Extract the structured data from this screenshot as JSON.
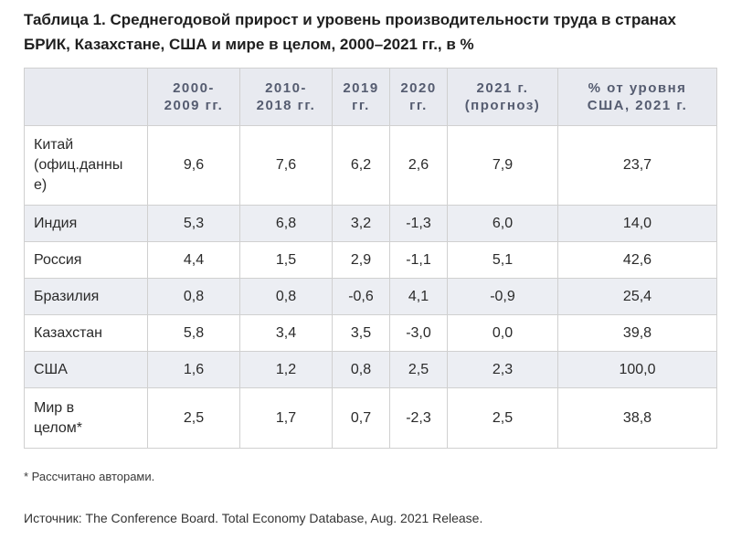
{
  "title": {
    "line1": "Таблица 1. Среднегодовой прирост и уровень производительности труда в странах",
    "line2": "БРИК, Казахстане, США и мире в целом, 2000–2021 гг., в %"
  },
  "table": {
    "headers": [
      {
        "line1": "2000-",
        "line2": "2009 гг."
      },
      {
        "line1": "2010-",
        "line2": "2018 гг."
      },
      {
        "line1": "2019",
        "line2": "гг."
      },
      {
        "line1": "2020",
        "line2": "гг."
      },
      {
        "line1": "2021 г.",
        "line2": "(прогноз)"
      },
      {
        "line1": "% от уровня",
        "line2": "США, 2021 г."
      }
    ],
    "rows": [
      {
        "country_lines": [
          "Китай",
          "(офиц.данны",
          "е)"
        ],
        "values": [
          "9,6",
          "7,6",
          "6,2",
          "2,6",
          "7,9",
          "23,7"
        ]
      },
      {
        "country_lines": [
          "Индия"
        ],
        "values": [
          "5,3",
          "6,8",
          "3,2",
          "-1,3",
          "6,0",
          "14,0"
        ]
      },
      {
        "country_lines": [
          "Россия"
        ],
        "values": [
          "4,4",
          "1,5",
          "2,9",
          "-1,1",
          "5,1",
          "42,6"
        ]
      },
      {
        "country_lines": [
          "Бразилия"
        ],
        "values": [
          "0,8",
          "0,8",
          "-0,6",
          "4,1",
          "-0,9",
          "25,4"
        ]
      },
      {
        "country_lines": [
          "Казахстан"
        ],
        "values": [
          "5,8",
          "3,4",
          "3,5",
          "-3,0",
          "0,0",
          "39,8"
        ]
      },
      {
        "country_lines": [
          "США"
        ],
        "values": [
          "1,6",
          "1,2",
          "0,8",
          "2,5",
          "2,3",
          "100,0"
        ]
      },
      {
        "country_lines": [
          "Мир в",
          "целом*"
        ],
        "values": [
          "2,5",
          "1,7",
          "0,7",
          "-2,3",
          "2,5",
          "38,8"
        ]
      }
    ]
  },
  "footnote": "* Рассчитано авторами.",
  "source": "Источник: The Conference Board. Total Economy Database, Aug. 2021 Release.",
  "colors": {
    "header_bg": "#e8eaf0",
    "header_text": "#555c70",
    "row_shade": "#eceef3",
    "border": "#d0d0d0"
  }
}
